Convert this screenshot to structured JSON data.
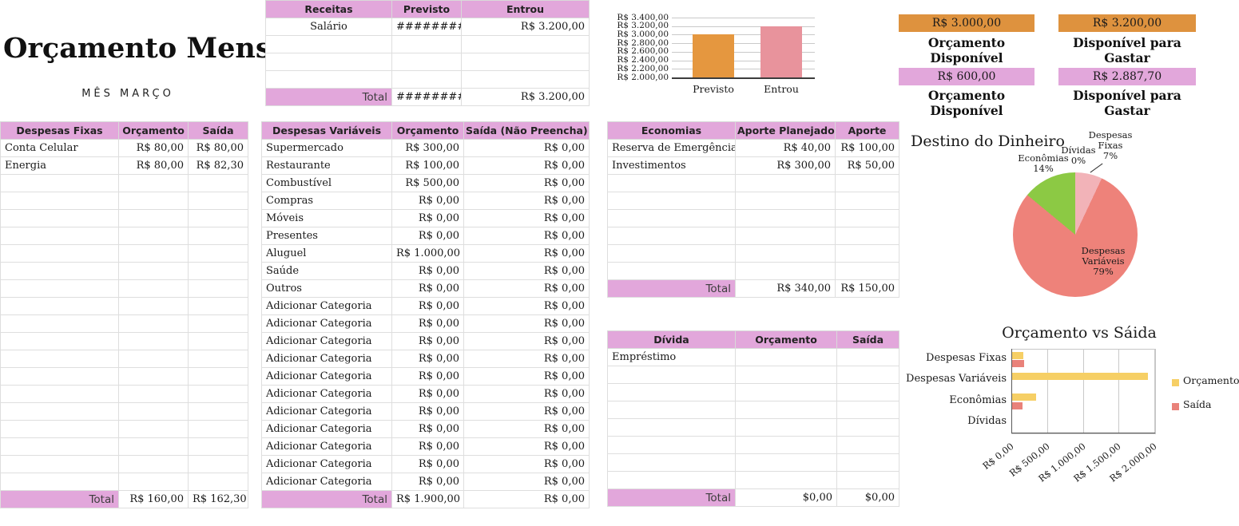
{
  "page_title": "Orçamento Mensal",
  "subtitle": "MÊS MARÇO",
  "colors": {
    "pink": "#e2a7db",
    "orange": "#de923e",
    "bar_orange": "#e5973f",
    "bar_pink": "#e8939c",
    "pie_lightpink": "#f2b3b8",
    "pie_salmon": "#ee827a",
    "pie_green": "#8cc944",
    "chart_yellow": "#f6cf65",
    "chart_salmon": "#e9827a"
  },
  "receitas": {
    "headers": [
      "Receitas",
      "Previsto",
      "Entrou"
    ],
    "rows": [
      [
        "Salário",
        "#########",
        "R$ 3.200,00"
      ]
    ],
    "empty_rows": 3,
    "total": [
      "Total",
      "#########",
      "R$ 3.200,00"
    ]
  },
  "kpis": [
    {
      "value": "R$ 3.000,00",
      "label": "Orçamento Disponível",
      "color": "#de923e"
    },
    {
      "value": "R$ 3.200,00",
      "label": "Disponível para Gastar",
      "color": "#de923e"
    },
    {
      "value": "R$ 600,00",
      "label": "Orçamento Disponível",
      "color": "#e2a7db"
    },
    {
      "value": "R$ 2.887,70",
      "label": "Disponível para Gastar",
      "color": "#e2a7db"
    }
  ],
  "despesas_fixas": {
    "headers": [
      "Despesas Fixas",
      "Orçamento",
      "Saída"
    ],
    "rows": [
      [
        "Conta Celular",
        "R$ 80,00",
        "R$ 80,00"
      ],
      [
        "Energia",
        "R$ 80,00",
        "R$ 82,30"
      ]
    ],
    "empty_rows": 18,
    "total": [
      "Total",
      "R$ 160,00",
      "R$ 162,30"
    ]
  },
  "despesas_variaveis": {
    "headers": [
      "Despesas Variáveis",
      "Orçamento",
      "Saída (Não Preencha)"
    ],
    "rows": [
      [
        "Supermercado",
        "R$ 300,00",
        "R$ 0,00"
      ],
      [
        "Restaurante",
        "R$ 100,00",
        "R$ 0,00"
      ],
      [
        "Combustível",
        "R$ 500,00",
        "R$ 0,00"
      ],
      [
        "Compras",
        "R$ 0,00",
        "R$ 0,00"
      ],
      [
        "Móveis",
        "R$ 0,00",
        "R$ 0,00"
      ],
      [
        "Presentes",
        "R$ 0,00",
        "R$ 0,00"
      ],
      [
        "Aluguel",
        "R$ 1.000,00",
        "R$ 0,00"
      ],
      [
        "Saúde",
        "R$ 0,00",
        "R$ 0,00"
      ],
      [
        "Outros",
        "R$ 0,00",
        "R$ 0,00"
      ],
      [
        "Adicionar Categoria",
        "R$ 0,00",
        "R$ 0,00"
      ],
      [
        "Adicionar Categoria",
        "R$ 0,00",
        "R$ 0,00"
      ],
      [
        "Adicionar Categoria",
        "R$ 0,00",
        "R$ 0,00"
      ],
      [
        "Adicionar Categoria",
        "R$ 0,00",
        "R$ 0,00"
      ],
      [
        "Adicionar Categoria",
        "R$ 0,00",
        "R$ 0,00"
      ],
      [
        "Adicionar Categoria",
        "R$ 0,00",
        "R$ 0,00"
      ],
      [
        "Adicionar Categoria",
        "R$ 0,00",
        "R$ 0,00"
      ],
      [
        "Adicionar Categoria",
        "R$ 0,00",
        "R$ 0,00"
      ],
      [
        "Adicionar Categoria",
        "R$ 0,00",
        "R$ 0,00"
      ],
      [
        "Adicionar Categoria",
        "R$ 0,00",
        "R$ 0,00"
      ],
      [
        "Adicionar Categoria",
        "R$ 0,00",
        "R$ 0,00"
      ]
    ],
    "empty_rows": 0,
    "total": [
      "Total",
      "R$ 1.900,00",
      "R$ 0,00"
    ]
  },
  "economias": {
    "headers": [
      "Economias",
      "Aporte Planejado",
      "Aporte"
    ],
    "rows": [
      [
        "Reserva de Emergência",
        "R$ 40,00",
        "R$ 100,00"
      ],
      [
        "Investimentos",
        "R$ 300,00",
        "R$ 50,00"
      ]
    ],
    "empty_rows": 6,
    "total": [
      "Total",
      "R$ 340,00",
      "R$ 150,00"
    ]
  },
  "divida": {
    "headers": [
      "Dívida",
      "Orçamento",
      "Saída"
    ],
    "rows": [
      [
        "Empréstimo",
        "",
        ""
      ]
    ],
    "empty_rows": 7,
    "total": [
      "Total",
      "$0,00",
      "$0,00"
    ]
  },
  "chart_data": [
    {
      "type": "bar",
      "title": "",
      "categories": [
        "Previsto",
        "Entrou"
      ],
      "values": [
        3000,
        3200
      ],
      "bar_colors": [
        "#e5973f",
        "#e8939c"
      ],
      "ylim": [
        2000,
        3400
      ],
      "yticks": [
        {
          "label": "R$ 3.400,00",
          "value": 3400
        },
        {
          "label": "R$ 3.200,00",
          "value": 3200
        },
        {
          "label": "R$ 3.000,00",
          "value": 3000
        },
        {
          "label": "R$ 2.800,00",
          "value": 2800
        },
        {
          "label": "R$ 2.600,00",
          "value": 2600
        },
        {
          "label": "R$ 2.400,00",
          "value": 2400
        },
        {
          "label": "R$ 2.200,00",
          "value": 2200
        },
        {
          "label": "R$ 2.000,00",
          "value": 2000
        }
      ],
      "grid": true
    },
    {
      "type": "pie",
      "title": "Destino do Dinheiro",
      "slices": [
        {
          "label": "Despesas Fixas",
          "pct": 7,
          "color": "#f2b3b8"
        },
        {
          "label": "Despesas Variáveis",
          "pct": 79,
          "color": "#ee827a"
        },
        {
          "label": "Econômias",
          "pct": 14,
          "color": "#8cc944"
        },
        {
          "label": "Dívidas",
          "pct": 0,
          "color": "#e2a7db"
        }
      ],
      "start_angle_deg": 0,
      "direction": "clockwise"
    },
    {
      "type": "bar",
      "orientation": "horizontal",
      "title": "Orçamento vs Sáida",
      "categories": [
        "Despesas Fixas",
        "Despesas Variáveis",
        "Econômias",
        "Dívidas"
      ],
      "series": [
        {
          "name": "Orçamento",
          "color": "#f6cf65",
          "values": [
            160,
            1900,
            340,
            0
          ]
        },
        {
          "name": "Saída",
          "color": "#e9827a",
          "values": [
            162.3,
            0,
            150,
            0
          ]
        }
      ],
      "xlim": [
        0,
        2000
      ],
      "xticks": [
        {
          "label": "R$ 0,00",
          "value": 0
        },
        {
          "label": "R$ 500,00",
          "value": 500
        },
        {
          "label": "R$ 1.000,00",
          "value": 1000
        },
        {
          "label": "R$ 1.500,00",
          "value": 1500
        },
        {
          "label": "R$ 2.000,00",
          "value": 2000
        }
      ],
      "legend_position": "right",
      "grid": true
    }
  ]
}
